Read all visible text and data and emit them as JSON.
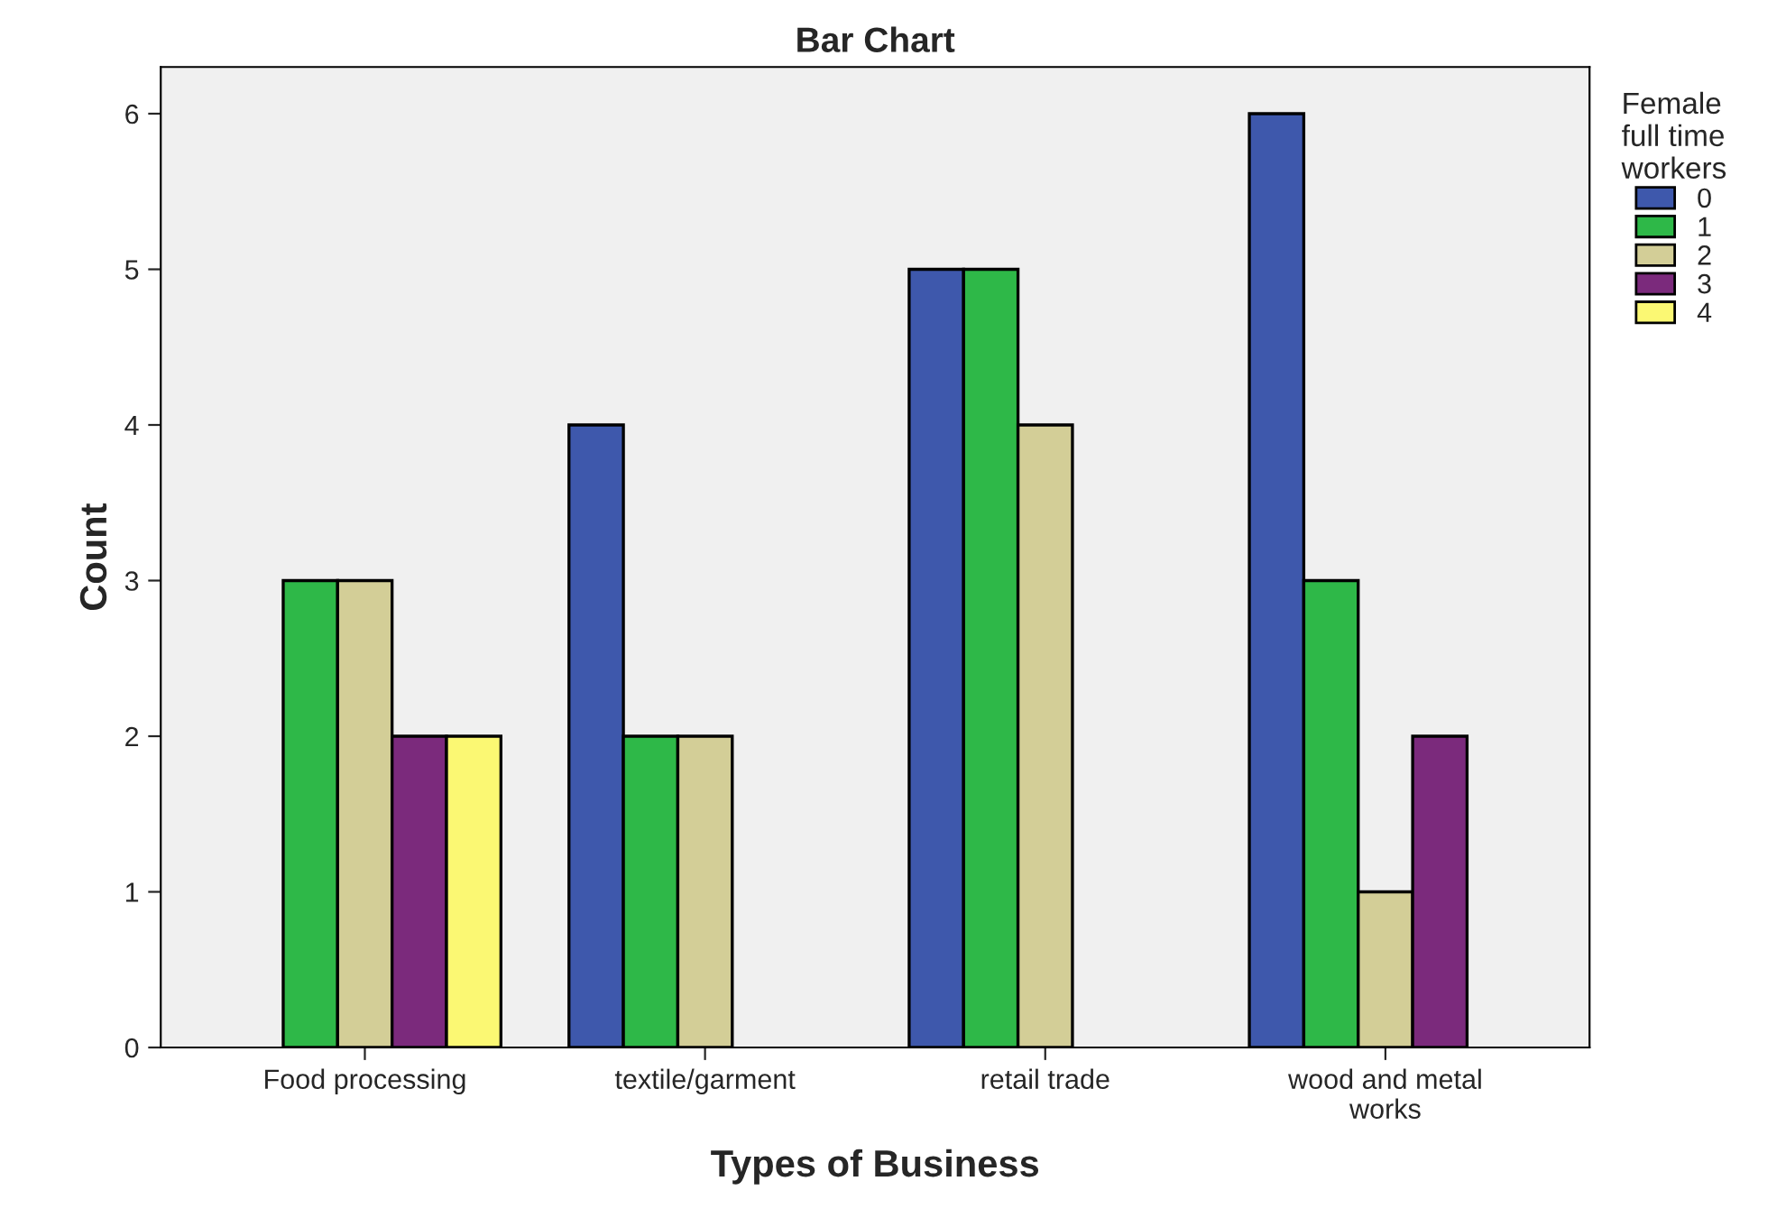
{
  "chart_data": {
    "type": "bar",
    "title": "Bar Chart",
    "xlabel": "Types of Business",
    "ylabel": "Count",
    "legend_title": "Female\nfull time\nworkers",
    "legend": "top right",
    "grid": false,
    "categories": [
      "Food processing",
      "textile/garment",
      "retail trade",
      "wood and metal\nworks"
    ],
    "series": [
      {
        "name": "0",
        "color": "#3e58ac",
        "values": [
          null,
          4,
          5,
          6
        ]
      },
      {
        "name": "1",
        "color": "#2eb848",
        "values": [
          3,
          2,
          5,
          3
        ]
      },
      {
        "name": "2",
        "color": "#d3ce97",
        "values": [
          3,
          2,
          4,
          1
        ]
      },
      {
        "name": "3",
        "color": "#7b2a7c",
        "values": [
          2,
          null,
          null,
          2
        ]
      },
      {
        "name": "4",
        "color": "#fbf873",
        "values": [
          2,
          null,
          null,
          null
        ]
      }
    ],
    "ylim": [
      0,
      6.3
    ],
    "yticks": [
      0,
      1,
      2,
      3,
      4,
      5,
      6
    ]
  }
}
